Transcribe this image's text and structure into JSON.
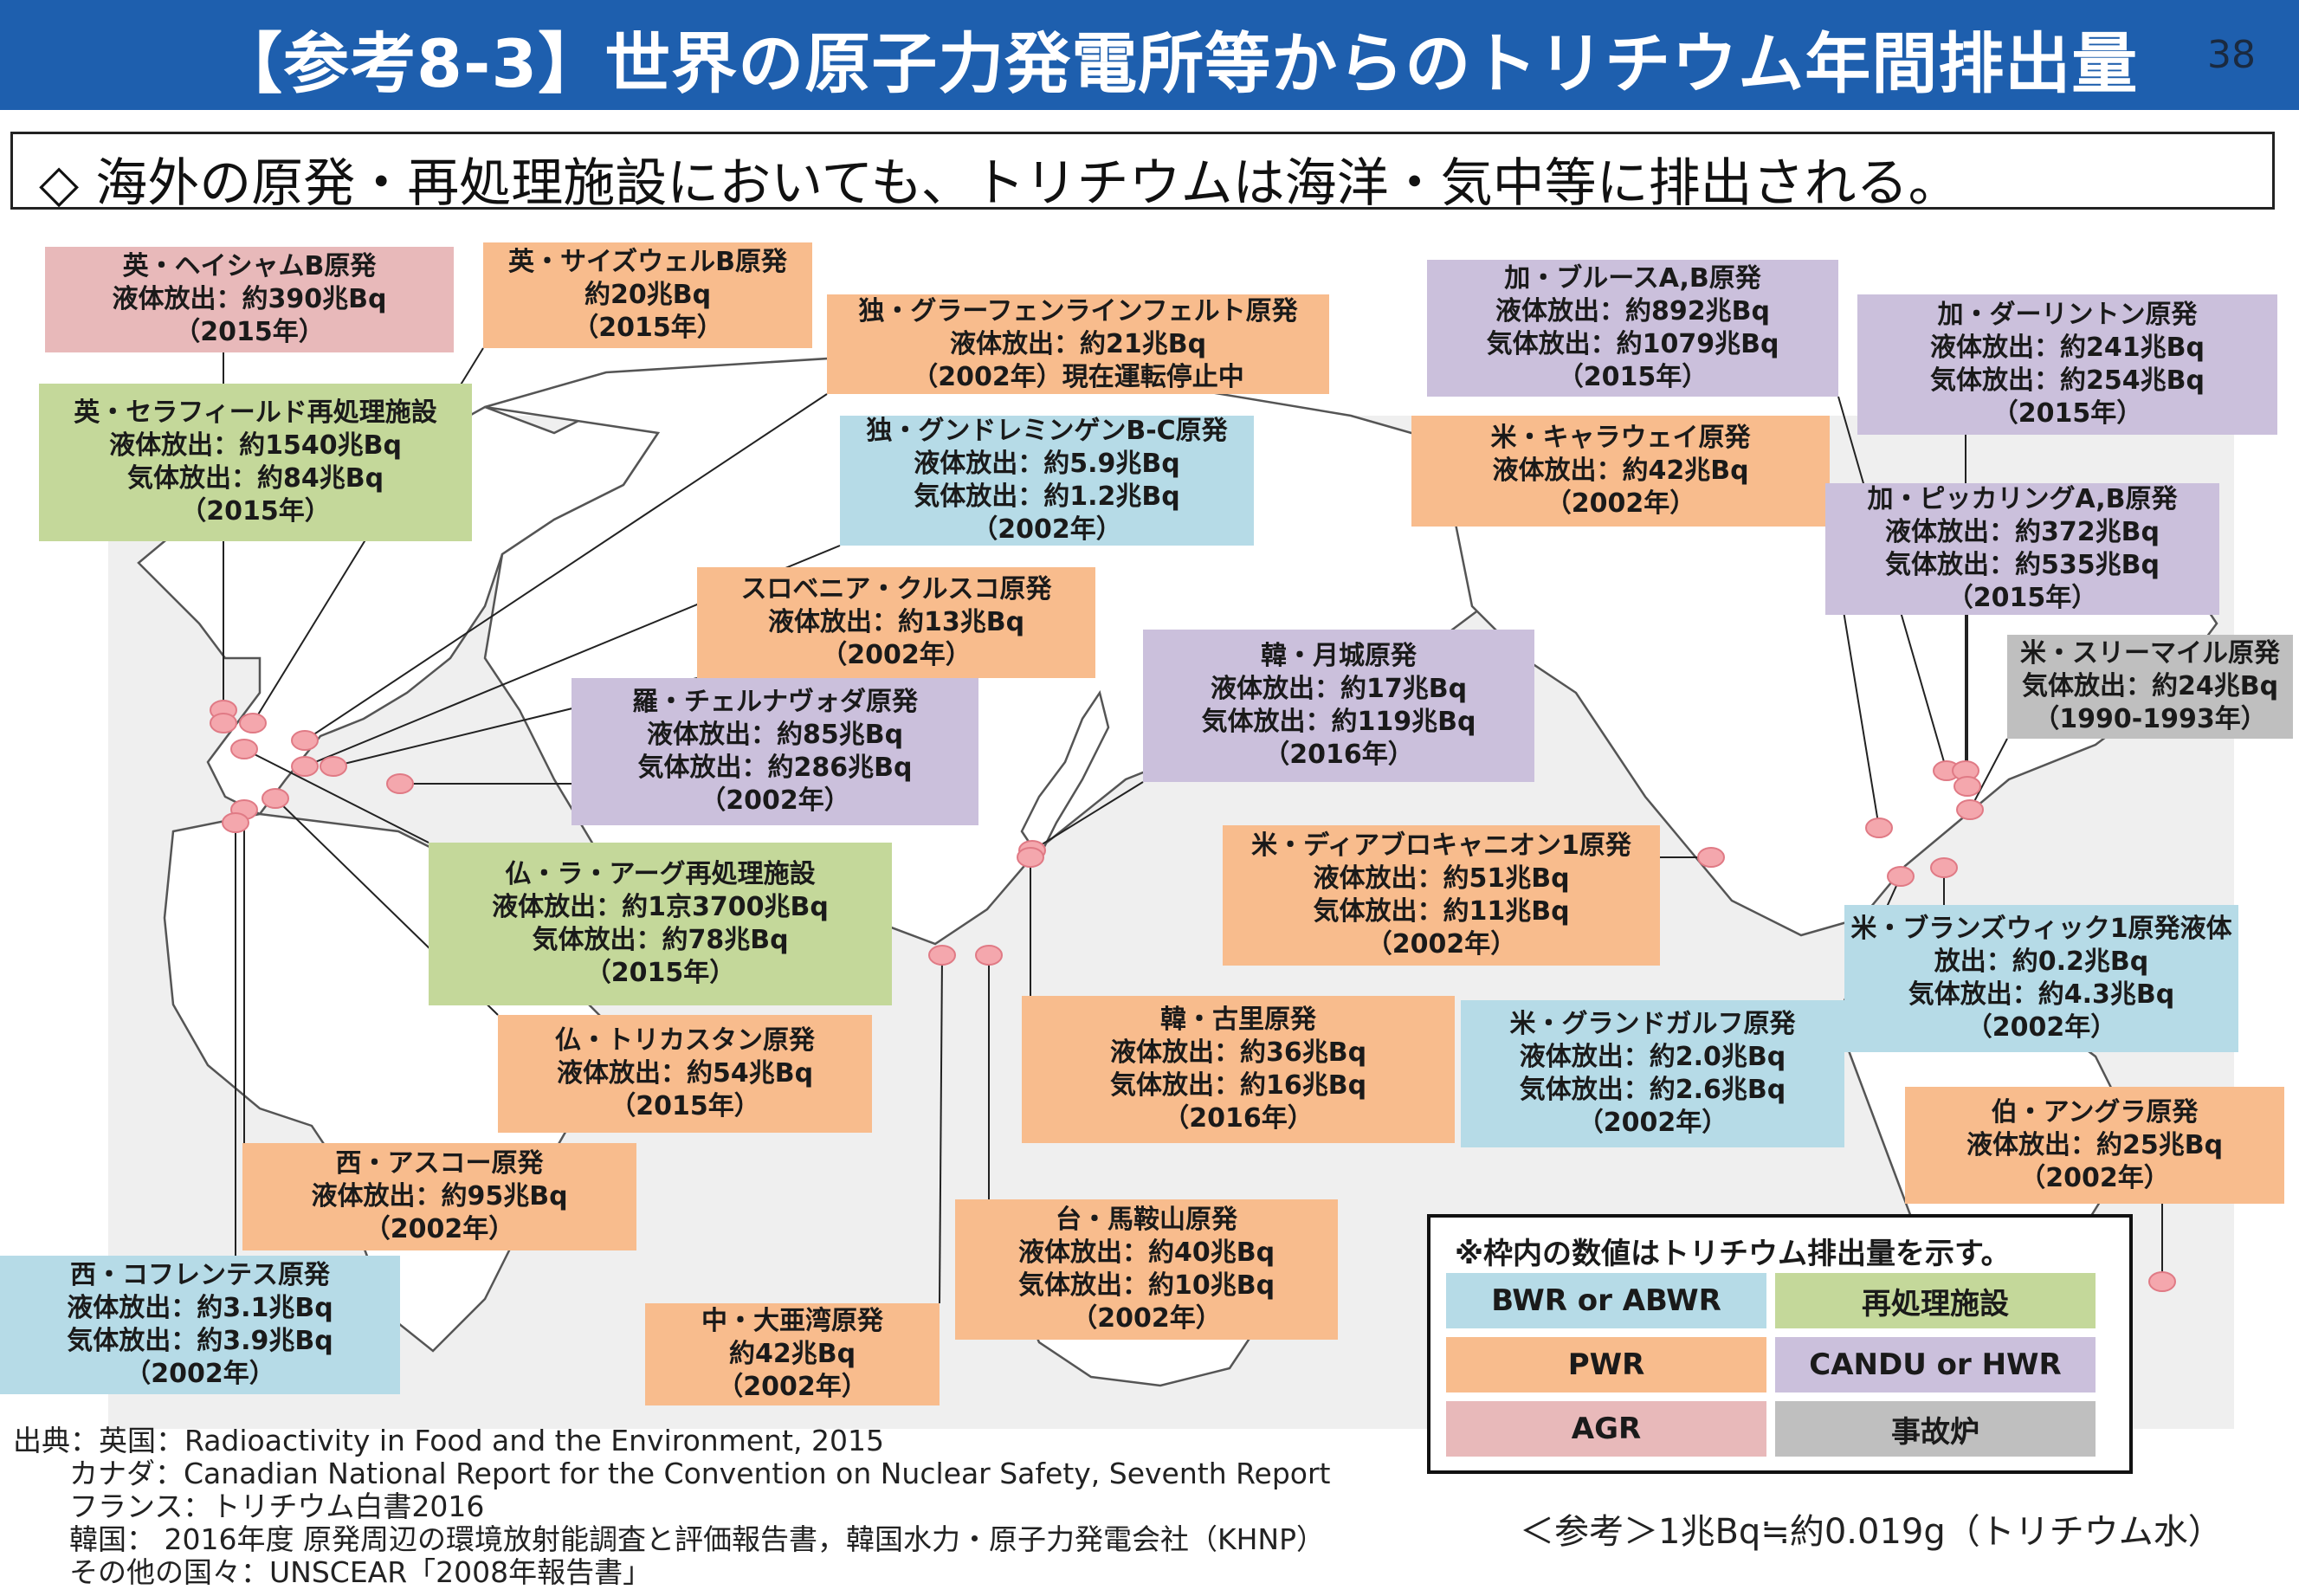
{
  "header": {
    "title": "【参考8-3】世界の原子力発電所等からのトリチウム年間排出量",
    "page_number": "38"
  },
  "subtitle": "◇  海外の原発・再処理施設においても、トリチウムは海洋・気中等に排出される。",
  "colors": {
    "header_bg": "#1e5fae",
    "PWR": "#f8bc8d",
    "BWR": "#b6dbe7",
    "REP": "#c4d89a",
    "CANDU": "#cbc0dc",
    "AGR": "#e8b9ba",
    "ACC": "#bfbfbf",
    "plant_marker": "#f4a7ad"
  },
  "plants": [
    {
      "id": "uk-heysham",
      "type": "AGR",
      "lines": [
        "英・ヘイシャムB原発",
        "液体放出：約390兆Bq",
        "（2015年）"
      ]
    },
    {
      "id": "uk-sizewell",
      "type": "PWR",
      "lines": [
        "英・サイズウェルB原発",
        "約20兆Bq",
        "（2015年）"
      ]
    },
    {
      "id": "de-grafenrheinfeld",
      "type": "PWR",
      "lines": [
        "独・グラーフェンラインフェルト原発",
        "液体放出：約21兆Bq",
        "（2002年）現在運転停止中"
      ]
    },
    {
      "id": "uk-sellafield",
      "type": "REP",
      "lines": [
        "英・セラフィールド再処理施設",
        "液体放出：約1540兆Bq",
        "気体放出：約84兆Bq",
        "（2015年）"
      ]
    },
    {
      "id": "de-gundremmingen",
      "type": "BWR",
      "lines": [
        "独・グンドレミンゲンB-C原発",
        "液体放出：約5.9兆Bq",
        "気体放出：約1.2兆Bq",
        "（2002年）"
      ]
    },
    {
      "id": "si-krsko",
      "type": "PWR",
      "lines": [
        "スロベニア・クルスコ原発",
        "液体放出：約13兆Bq",
        "（2002年）"
      ]
    },
    {
      "id": "ro-cernavoda",
      "type": "CANDU",
      "lines": [
        "羅・チェルナヴォダ原発",
        "液体放出：約85兆Bq",
        "気体放出：約286兆Bq",
        "（2002年）"
      ]
    },
    {
      "id": "fr-lahague",
      "type": "REP",
      "lines": [
        "仏・ラ・アーグ再処理施設",
        "液体放出：約1京3700兆Bq",
        "気体放出：約78兆Bq",
        "（2015年）"
      ]
    },
    {
      "id": "fr-tricastin",
      "type": "PWR",
      "lines": [
        "仏・トリカスタン原発",
        "液体放出：約54兆Bq",
        "（2015年）"
      ]
    },
    {
      "id": "es-asco",
      "type": "PWR",
      "lines": [
        "西・アスコー原発",
        "液体放出：約95兆Bq",
        "（2002年）"
      ]
    },
    {
      "id": "es-cofrentes",
      "type": "BWR",
      "lines": [
        "西・コフレンテス原発",
        "液体放出：約3.1兆Bq",
        "気体放出：約3.9兆Bq",
        "（2002年）"
      ]
    },
    {
      "id": "cn-dayawan",
      "type": "PWR",
      "lines": [
        "中・大亜湾原発",
        "約42兆Bq",
        "（2002年）"
      ]
    },
    {
      "id": "kr-wolsong",
      "type": "CANDU",
      "lines": [
        "韓・月城原発",
        "液体放出：約17兆Bq",
        "気体放出：約119兆Bq",
        "（2016年）"
      ]
    },
    {
      "id": "kr-kori",
      "type": "PWR",
      "lines": [
        "韓・古里原発",
        "液体放出：約36兆Bq",
        "気体放出：約16兆Bq",
        "（2016年）"
      ]
    },
    {
      "id": "tw-maanshan",
      "type": "PWR",
      "lines": [
        "台・馬鞍山原発",
        "液体放出：約40兆Bq",
        "気体放出：約10兆Bq",
        "（2002年）"
      ]
    },
    {
      "id": "ca-bruce",
      "type": "CANDU",
      "lines": [
        "加・ブルースA,B原発",
        "液体放出：約892兆Bq",
        "気体放出：約1079兆Bq",
        "（2015年）"
      ]
    },
    {
      "id": "ca-darlington",
      "type": "CANDU",
      "lines": [
        "加・ダーリントン原発",
        "液体放出：約241兆Bq",
        "気体放出：約254兆Bq",
        "（2015年）"
      ]
    },
    {
      "id": "us-callaway",
      "type": "PWR",
      "lines": [
        "米・キャラウェイ原発",
        "液体放出：約42兆Bq",
        "（2002年）"
      ]
    },
    {
      "id": "ca-pickering",
      "type": "CANDU",
      "lines": [
        "加・ピッカリングA,B原発",
        "液体放出：約372兆Bq",
        "気体放出：約535兆Bq",
        "（2015年）"
      ]
    },
    {
      "id": "us-tmi",
      "type": "ACC",
      "lines": [
        "米・スリーマイル原発",
        "気体放出：約24兆Bq",
        "（1990-1993年）"
      ]
    },
    {
      "id": "us-diablo",
      "type": "PWR",
      "lines": [
        "米・ディアブロキャニオン1原発",
        "液体放出：約51兆Bq",
        "気体放出：約11兆Bq",
        "（2002年）"
      ]
    },
    {
      "id": "us-brunswick",
      "type": "BWR",
      "lines": [
        "米・ブランズウィック1原発液体",
        "放出：約0.2兆Bq",
        "気体放出：約4.3兆Bq",
        "（2002年）"
      ]
    },
    {
      "id": "us-grandgulf",
      "type": "BWR",
      "lines": [
        "米・グランドガルフ原発",
        "液体放出：約2.0兆Bq",
        "気体放出：約2.6兆Bq",
        "（2002年）"
      ]
    },
    {
      "id": "br-angra",
      "type": "PWR",
      "lines": [
        "伯・アングラ原発",
        "液体放出：約25兆Bq",
        "（2002年）"
      ]
    }
  ],
  "legend": {
    "note": "※枠内の数値はトリチウム排出量を示す。",
    "items": [
      {
        "label": "BWR or ABWR",
        "type": "BWR"
      },
      {
        "label": "再処理施設",
        "type": "REP"
      },
      {
        "label": "PWR",
        "type": "PWR"
      },
      {
        "label": "CANDU or HWR",
        "type": "CANDU"
      },
      {
        "label": "AGR",
        "type": "AGR"
      },
      {
        "label": "事故炉",
        "type": "ACC"
      }
    ]
  },
  "sources": [
    "出典：英国：Radioactivity in Food and the Environment, 2015",
    "カナダ：Canadian National Report for the Convention on Nuclear Safety, Seventh Report",
    "フランス：トリチウム白書2016",
    "韓国：  2016年度 原発周辺の環境放射能調査と評価報告書，韓国水力・原子力発電会社（KHNP）",
    "その他の国々：UNSCEAR「2008年報告書」"
  ],
  "reference_note": "＜参考＞1兆Bq≒約0.019g（トリチウム水）"
}
